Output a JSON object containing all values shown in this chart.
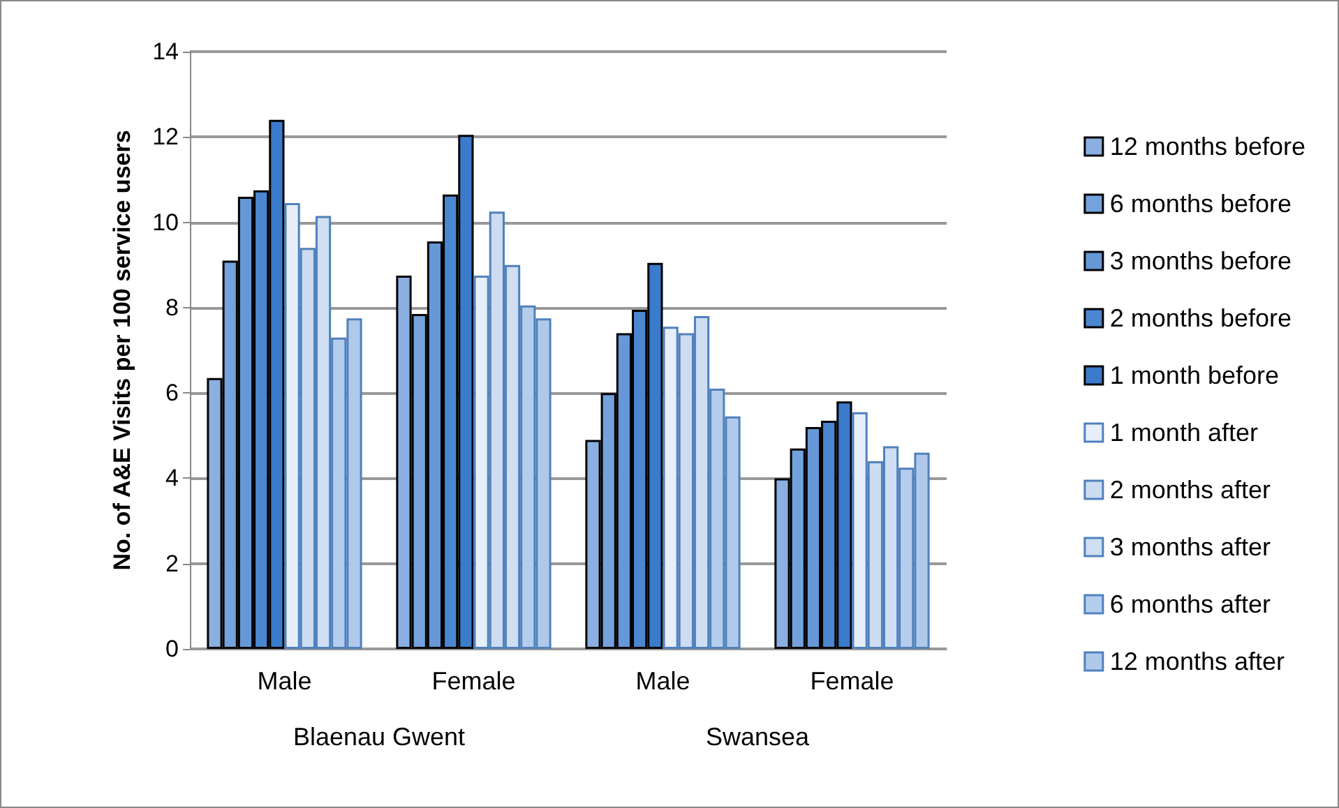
{
  "chart_data": {
    "type": "bar",
    "ylabel": "No. of A&E Visits per 100 service users",
    "categories": [
      "Male",
      "Female",
      "Male",
      "Female"
    ],
    "annotations": [
      "Blaenau Gwent",
      "Swansea"
    ],
    "series": [
      {
        "name": "12 months before",
        "color": "#8aafe0",
        "values": [
          6.35,
          8.75,
          4.9,
          4.0
        ]
      },
      {
        "name": "6 months before",
        "color": "#74a2dc",
        "values": [
          9.1,
          7.85,
          6.0,
          4.7
        ]
      },
      {
        "name": "3 months before",
        "color": "#6698d8",
        "values": [
          10.6,
          9.55,
          7.4,
          5.2
        ]
      },
      {
        "name": "2 months before",
        "color": "#4a87d0",
        "values": [
          10.75,
          10.65,
          7.95,
          5.35
        ]
      },
      {
        "name": "1 month before",
        "color": "#3a7bcc",
        "values": [
          12.4,
          12.05,
          9.05,
          5.8
        ]
      },
      {
        "name": "1 month after",
        "color": "#e6eef9",
        "values": [
          10.45,
          8.75,
          7.55,
          5.55
        ]
      },
      {
        "name": "2 months after",
        "color": "#cddcf1",
        "values": [
          9.4,
          10.25,
          7.4,
          4.4
        ]
      },
      {
        "name": "3 months after",
        "color": "#cfdef2",
        "values": [
          10.15,
          9.0,
          7.8,
          4.75
        ]
      },
      {
        "name": "6 months after",
        "color": "#b5cdec",
        "values": [
          7.3,
          8.05,
          6.1,
          4.25
        ]
      },
      {
        "name": "12 months after",
        "color": "#b0c9ea",
        "values": [
          7.75,
          7.75,
          5.45,
          4.6
        ]
      }
    ],
    "ylim": [
      0,
      14
    ],
    "yticks": [
      0,
      2,
      4,
      6,
      8,
      10,
      12,
      14
    ],
    "grid": "y",
    "legend": "right"
  }
}
